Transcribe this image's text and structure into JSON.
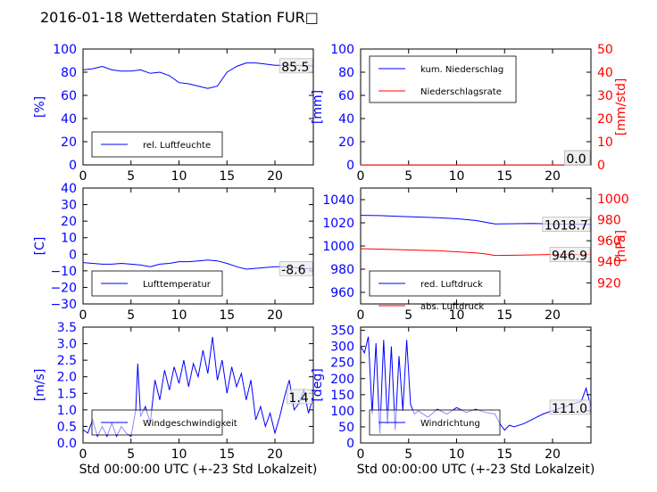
{
  "title": "2016-01-18 Wetterdaten Station FUR□",
  "colors": {
    "primary": "#0000ff",
    "secondary": "#ff0000"
  },
  "chart_data": [
    {
      "type": "line",
      "ylabel": "[%]",
      "xlabel": "",
      "xlim": [
        0,
        24
      ],
      "ylim": [
        0,
        100
      ],
      "xticks": [
        "0",
        "5",
        "10",
        "15",
        "20"
      ],
      "yticks": [
        "0",
        "20",
        "40",
        "60",
        "80",
        "100"
      ],
      "legend_loc": "lower-left",
      "last_value_label": "85.5",
      "series": [
        {
          "name": "rel. Luftfeuchte",
          "color": "#0000ff",
          "x": [
            0,
            1,
            2,
            3,
            4,
            5,
            6,
            7,
            8,
            9,
            10,
            11,
            12,
            13,
            14,
            15,
            16,
            17,
            18,
            19,
            20,
            21,
            22,
            23,
            24
          ],
          "y": [
            82,
            83,
            85,
            82,
            81,
            81,
            82,
            79,
            80,
            77,
            71,
            70,
            68,
            66,
            68,
            80,
            85,
            88,
            88,
            87,
            86,
            86,
            86,
            85.5,
            85.5
          ]
        }
      ]
    },
    {
      "type": "line",
      "ylabel": "[mm]",
      "ylabel_right": "[mm/std]",
      "xlabel": "",
      "xlim": [
        0,
        24
      ],
      "ylim": [
        0,
        100
      ],
      "ylim_right": [
        0,
        50
      ],
      "xticks": [
        "0",
        "5",
        "10",
        "15",
        "20"
      ],
      "yticks": [
        "0",
        "20",
        "40",
        "60",
        "80",
        "100"
      ],
      "yticks_right": [
        "0",
        "10",
        "20",
        "30",
        "40",
        "50"
      ],
      "legend_loc": "upper-left",
      "last_value_label": "0.0",
      "last_value_label_2": "0.0",
      "series": [
        {
          "name": "kum. Niederschlag",
          "color": "#0000ff",
          "x": [
            0,
            24
          ],
          "y": [
            0,
            0
          ]
        },
        {
          "name": "Niederschlagsrate",
          "color": "#ff0000",
          "axis": "right",
          "x": [
            0,
            24
          ],
          "y": [
            0,
            0
          ]
        }
      ]
    },
    {
      "type": "line",
      "ylabel": "[C]",
      "xlabel": "",
      "xlim": [
        0,
        24
      ],
      "ylim": [
        -30,
        40
      ],
      "xticks": [
        "0",
        "5",
        "10",
        "15",
        "20"
      ],
      "yticks": [
        "−30",
        "−20",
        "−10",
        "0",
        "10",
        "20",
        "30",
        "40"
      ],
      "legend_loc": "lower-left",
      "last_value_label": "-8.6",
      "series": [
        {
          "name": "Lufttemperatur",
          "color": "#0000ff",
          "x": [
            0,
            1,
            2,
            3,
            4,
            5,
            6,
            7,
            8,
            9,
            10,
            11,
            12,
            13,
            14,
            15,
            16,
            17,
            18,
            19,
            20,
            21,
            22,
            23,
            24
          ],
          "y": [
            -5,
            -5.5,
            -6,
            -6,
            -5.5,
            -6,
            -6.5,
            -7.5,
            -6,
            -5.5,
            -4.5,
            -4.5,
            -4,
            -3.5,
            -4,
            -5.5,
            -7.5,
            -9,
            -8.5,
            -8,
            -7.5,
            -7.5,
            -8,
            -8.6,
            -8.6
          ]
        }
      ]
    },
    {
      "type": "line",
      "ylabel": "",
      "ylabel_right": "[hPa]",
      "xlabel": "",
      "xlim": [
        0,
        24
      ],
      "ylim": [
        950,
        1050
      ],
      "ylim_right": [
        900,
        1010
      ],
      "xticks": [
        "0",
        "5",
        "10",
        "15",
        "20"
      ],
      "yticks": [
        "960",
        "980",
        "1000",
        "1020",
        "1040"
      ],
      "yticks_right": [
        "920",
        "940",
        "960",
        "980",
        "1000"
      ],
      "legend_loc": "lower-left",
      "last_value_label": "1018.7",
      "last_value_label_2": "946.9",
      "series": [
        {
          "name": "red. Luftdruck",
          "color": "#0000ff",
          "x": [
            0,
            2,
            4,
            6,
            8,
            10,
            12,
            13,
            14,
            16,
            18,
            20,
            22,
            24
          ],
          "y": [
            1026.5,
            1026.2,
            1025.5,
            1025,
            1024.5,
            1023.5,
            1022,
            1020.5,
            1019,
            1019.2,
            1019.5,
            1019,
            1018.8,
            1018.7
          ]
        },
        {
          "name": "abs. Luftdruck",
          "color": "#ff0000",
          "axis": "right",
          "x": [
            0,
            2,
            4,
            6,
            8,
            10,
            12,
            13,
            14,
            16,
            18,
            20,
            22,
            24
          ],
          "y": [
            952.5,
            952,
            951.5,
            951,
            950.5,
            949.5,
            948.5,
            947.5,
            946,
            946.2,
            946.5,
            947,
            946.9,
            946.9
          ]
        }
      ]
    },
    {
      "type": "line",
      "ylabel": "[m/s]",
      "xlabel": "Std 00:00:00 UTC (+-23 Std Lokalzeit)",
      "xlim": [
        0,
        24
      ],
      "ylim": [
        0,
        3.5
      ],
      "xticks": [
        "0",
        "5",
        "10",
        "15",
        "20"
      ],
      "yticks": [
        "0.0",
        "0.5",
        "1.0",
        "1.5",
        "2.0",
        "2.5",
        "3.0",
        "3.5"
      ],
      "legend_loc": "lower-left",
      "last_value_label": "1.4",
      "series": [
        {
          "name": "Windgeschwindigkeit",
          "color": "#0000ff",
          "x": [
            0,
            0.5,
            1,
            1.5,
            2,
            2.5,
            3,
            3.5,
            4,
            4.5,
            5,
            5.5,
            5.7,
            6,
            6.5,
            7,
            7.5,
            8,
            8.5,
            9,
            9.5,
            10,
            10.5,
            11,
            11.5,
            12,
            12.5,
            13,
            13.5,
            14,
            14.5,
            15,
            15.5,
            16,
            16.5,
            17,
            17.5,
            18,
            18.5,
            19,
            19.5,
            20,
            20.5,
            21,
            21.5,
            22,
            22.5,
            23,
            23.5,
            24
          ],
          "y": [
            0.4,
            0.3,
            0.7,
            0.2,
            0.5,
            0.2,
            0.6,
            0.2,
            0.5,
            0.3,
            0.2,
            1.0,
            2.4,
            0.8,
            1.1,
            0.6,
            1.9,
            1.3,
            2.2,
            1.6,
            2.3,
            1.8,
            2.5,
            1.7,
            2.4,
            2.0,
            2.8,
            2.1,
            3.2,
            1.9,
            2.5,
            1.5,
            2.3,
            1.7,
            2.1,
            1.3,
            1.9,
            0.7,
            1.1,
            0.5,
            0.9,
            0.3,
            0.8,
            1.4,
            1.9,
            1.0,
            1.2,
            1.6,
            0.9,
            1.4
          ]
        }
      ]
    },
    {
      "type": "line",
      "ylabel": "[deg]",
      "xlabel": "Std 00:00:00 UTC (+-23 Std Lokalzeit)",
      "xlim": [
        0,
        24
      ],
      "ylim": [
        0,
        360
      ],
      "xticks": [
        "0",
        "5",
        "10",
        "15",
        "20"
      ],
      "yticks": [
        "0",
        "50",
        "100",
        "150",
        "200",
        "250",
        "300",
        "350"
      ],
      "legend_loc": "lower-left",
      "last_value_label": "111.0",
      "series": [
        {
          "name": "Windrichtung",
          "color": "#0000ff",
          "x": [
            0,
            0.4,
            0.8,
            1.2,
            1.6,
            2,
            2.4,
            2.8,
            3.2,
            3.6,
            4,
            4.4,
            4.8,
            5.2,
            5.6,
            6,
            7,
            8,
            9,
            10,
            11,
            12,
            13,
            14,
            14.5,
            15,
            15.5,
            16,
            17,
            18,
            19,
            20,
            21,
            22,
            23,
            23.5,
            24
          ],
          "y": [
            300,
            280,
            330,
            90,
            310,
            30,
            320,
            60,
            300,
            40,
            270,
            100,
            320,
            120,
            90,
            100,
            80,
            105,
            90,
            110,
            95,
            105,
            95,
            90,
            60,
            40,
            55,
            50,
            60,
            75,
            90,
            100,
            110,
            120,
            130,
            170,
            111
          ]
        }
      ]
    }
  ]
}
